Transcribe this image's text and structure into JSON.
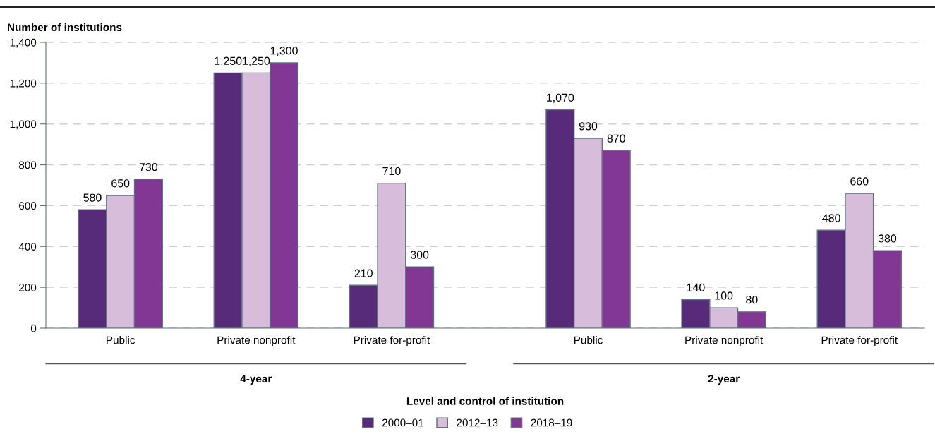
{
  "chart_data": {
    "type": "bar",
    "ylabel": "Number of institutions",
    "xlabel": "Level and control of institution",
    "categories": [
      "Public",
      "Private nonprofit",
      "Private for-profit",
      "Public",
      "Private nonprofit",
      "Private for-profit"
    ],
    "series": [
      {
        "name": "2000–01",
        "color": "#582b7a",
        "values": [
          580,
          1250,
          210,
          1070,
          140,
          480
        ],
        "value_labels": [
          "580",
          "1,250",
          "210",
          "1,070",
          "140",
          "480"
        ]
      },
      {
        "name": "2012–13",
        "color": "#d8bddb",
        "values": [
          650,
          1250,
          710,
          930,
          100,
          660
        ],
        "value_labels": [
          "650",
          "1,250",
          "710",
          "930",
          "100",
          "660"
        ]
      },
      {
        "name": "2018–19",
        "color": "#813793",
        "values": [
          730,
          1300,
          300,
          870,
          80,
          380
        ],
        "value_labels": [
          "730",
          "1,300",
          "300",
          "870",
          "80",
          "380"
        ]
      }
    ],
    "ylim": [
      0,
      1400
    ],
    "yticks": [
      0,
      200,
      400,
      600,
      800,
      {
        "value": 1000,
        "label": "1,000"
      },
      {
        "value": 1200,
        "label": "1,200"
      },
      {
        "value": 1400,
        "label": "1,400"
      }
    ],
    "grid": "y",
    "legend": "bottom",
    "annotations": [
      "4-year",
      "2-year"
    ]
  }
}
